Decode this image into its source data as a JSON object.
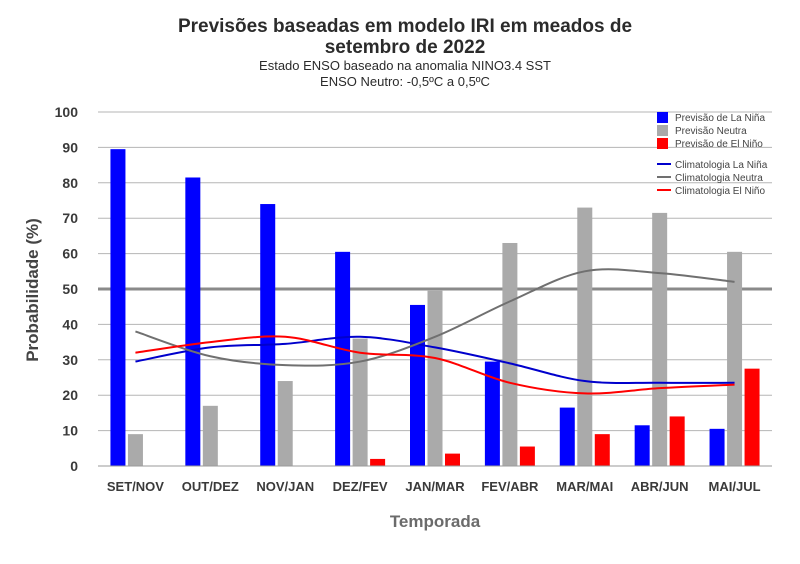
{
  "chart_data": {
    "type": "bar",
    "title_line1": "Previsões baseadas em modelo IRI em meados de",
    "title_line2": "setembro de 2022",
    "subtitle_line1": "Estado ENSO baseado na anomalia NINO3.4 SST",
    "subtitle_line2": "ENSO Neutro: -0,5ºC a 0,5ºC",
    "xlabel": "Temporada",
    "ylabel": "Probabilidade (%)",
    "ylim": [
      0,
      100
    ],
    "yticks": [
      0,
      10,
      20,
      30,
      40,
      50,
      60,
      70,
      80,
      90,
      100
    ],
    "reference_line": 50,
    "categories": [
      "SET/NOV",
      "OUT/DEZ",
      "NOV/JAN",
      "DEZ/FEV",
      "JAN/MAR",
      "FEV/ABR",
      "MAR/MAI",
      "ABR/JUN",
      "MAI/JUL"
    ],
    "series": [
      {
        "name": "Previsão de La Niña",
        "kind": "bar",
        "color": "#0000ff",
        "values": [
          89.5,
          81.5,
          74,
          60.5,
          45.5,
          29.5,
          16.5,
          11.5,
          10.5
        ]
      },
      {
        "name": "Previsão Neutra",
        "kind": "bar",
        "color": "#aaaaaa",
        "values": [
          9,
          17,
          24,
          36,
          49.5,
          63,
          73,
          71.5,
          60.5
        ]
      },
      {
        "name": "Previsão de El Niño",
        "kind": "bar",
        "color": "#ff0000",
        "values": [
          0,
          0,
          0,
          2,
          3.5,
          5.5,
          9,
          14,
          27.5
        ]
      },
      {
        "name": "Climatologia La Niña",
        "kind": "line",
        "color": "#0000cc",
        "values": [
          29.5,
          33.5,
          34.5,
          36.5,
          33.5,
          29,
          24,
          23.5,
          23.5
        ]
      },
      {
        "name": "Climatologia Neutra",
        "kind": "line",
        "color": "#707070",
        "values": [
          38,
          31,
          28.5,
          29.5,
          36.5,
          46.5,
          55,
          54.5,
          52
        ]
      },
      {
        "name": "Climatologia El Niño",
        "kind": "line",
        "color": "#ff0000",
        "values": [
          32,
          35,
          36.5,
          32,
          30.5,
          23.5,
          20.5,
          22,
          23
        ]
      }
    ],
    "grid": true,
    "legend_position": "top-right"
  }
}
